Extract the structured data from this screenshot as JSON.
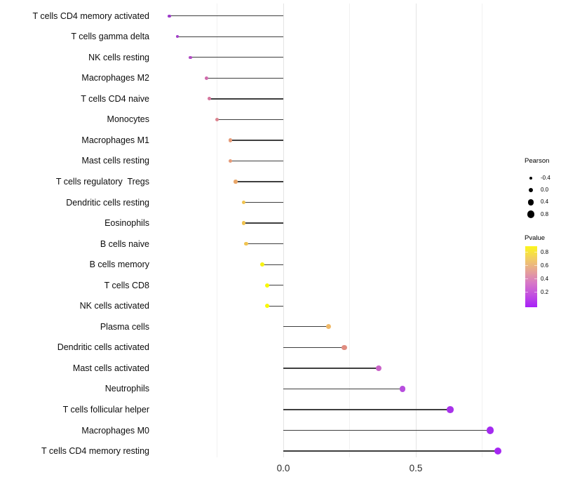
{
  "chart_data": {
    "type": "scatter",
    "variant": "lollipop",
    "title": "",
    "xlabel": "",
    "ylabel": "",
    "xlim": [
      -0.48,
      0.88
    ],
    "grid": "vertical-only",
    "x_major_ticks": [
      {
        "value": 0.0,
        "label": "0.0"
      },
      {
        "value": 0.5,
        "label": "0.5"
      }
    ],
    "x_minor_gridlines": [
      -0.25,
      0.25,
      0.75
    ],
    "rows": [
      {
        "label": "T cells CD4 memory activated",
        "pearson": -0.43,
        "pvalue_approx": 0.12,
        "dot_color": "#9c3ac8"
      },
      {
        "label": "T cells gamma delta",
        "pearson": -0.4,
        "pvalue_approx": 0.14,
        "dot_color": "#a33ec9"
      },
      {
        "label": "NK cells resting",
        "pearson": -0.35,
        "pvalue_approx": 0.2,
        "dot_color": "#b14cc4"
      },
      {
        "label": "Macrophages M2",
        "pearson": -0.29,
        "pvalue_approx": 0.32,
        "dot_color": "#d06bad"
      },
      {
        "label": "T cells CD4 naive",
        "pearson": -0.28,
        "pvalue_approx": 0.36,
        "dot_color": "#d4769e"
      },
      {
        "label": "Monocytes",
        "pearson": -0.25,
        "pvalue_approx": 0.42,
        "dot_color": "#dc8490"
      },
      {
        "label": "Macrophages M1",
        "pearson": -0.2,
        "pvalue_approx": 0.52,
        "dot_color": "#e59b79"
      },
      {
        "label": "Mast cells resting",
        "pearson": -0.2,
        "pvalue_approx": 0.53,
        "dot_color": "#e59b79"
      },
      {
        "label": "T cells regulatory  Tregs",
        "pearson": -0.18,
        "pvalue_approx": 0.58,
        "dot_color": "#e9a668"
      },
      {
        "label": "Dendritic cells resting",
        "pearson": -0.15,
        "pvalue_approx": 0.68,
        "dot_color": "#f0c350"
      },
      {
        "label": "Eosinophils",
        "pearson": -0.15,
        "pvalue_approx": 0.68,
        "dot_color": "#f0c350"
      },
      {
        "label": "B cells naive",
        "pearson": -0.14,
        "pvalue_approx": 0.69,
        "dot_color": "#f0c350"
      },
      {
        "label": "B cells memory",
        "pearson": -0.08,
        "pvalue_approx": 0.86,
        "dot_color": "#f6f213"
      },
      {
        "label": "T cells CD8",
        "pearson": -0.06,
        "pvalue_approx": 0.9,
        "dot_color": "#f8f807"
      },
      {
        "label": "NK cells activated",
        "pearson": -0.06,
        "pvalue_approx": 0.9,
        "dot_color": "#f8f807"
      },
      {
        "label": "Plasma cells",
        "pearson": 0.17,
        "pvalue_approx": 0.6,
        "dot_color": "#f0b968"
      },
      {
        "label": "Dendritic cells activated",
        "pearson": 0.23,
        "pvalue_approx": 0.48,
        "dot_color": "#e08d80"
      },
      {
        "label": "Mast cells activated",
        "pearson": 0.36,
        "pvalue_approx": 0.28,
        "dot_color": "#c962c8"
      },
      {
        "label": "Neutrophils",
        "pearson": 0.45,
        "pvalue_approx": 0.18,
        "dot_color": "#b74ede"
      },
      {
        "label": "T cells follicular helper",
        "pearson": 0.63,
        "pvalue_approx": 0.09,
        "dot_color": "#a832ea"
      },
      {
        "label": "Macrophages M0",
        "pearson": 0.78,
        "pvalue_approx": 0.05,
        "dot_color": "#a42bf0"
      },
      {
        "label": "T cells CD4 memory resting",
        "pearson": 0.81,
        "pvalue_approx": 0.04,
        "dot_color": "#a527f2"
      }
    ],
    "legend_size": {
      "title": "Pearson",
      "dot_color": "#000000",
      "items": [
        {
          "value": -0.4,
          "label": "-0.4"
        },
        {
          "value": 0.0,
          "label": "0.0"
        },
        {
          "value": 0.4,
          "label": "0.4"
        },
        {
          "value": 0.8,
          "label": "0.8"
        }
      ]
    },
    "legend_color": {
      "title": "Pvalue",
      "tick_labels": [
        "0.8",
        "0.6",
        "0.4",
        "0.2"
      ],
      "gradient_stops_top_to_bottom": [
        "#fcf61d",
        "#f2ce62",
        "#e6a495",
        "#d778c6",
        "#c24fe0",
        "#a720f8"
      ]
    },
    "colors": {
      "background": "#ffffff",
      "stick": "#3e3e3e",
      "grid_major": "#e4e4e4",
      "grid_minor": "#f1f1f1",
      "label_text": "#0d0d0d",
      "axis_text": "#2b2b2b"
    }
  }
}
